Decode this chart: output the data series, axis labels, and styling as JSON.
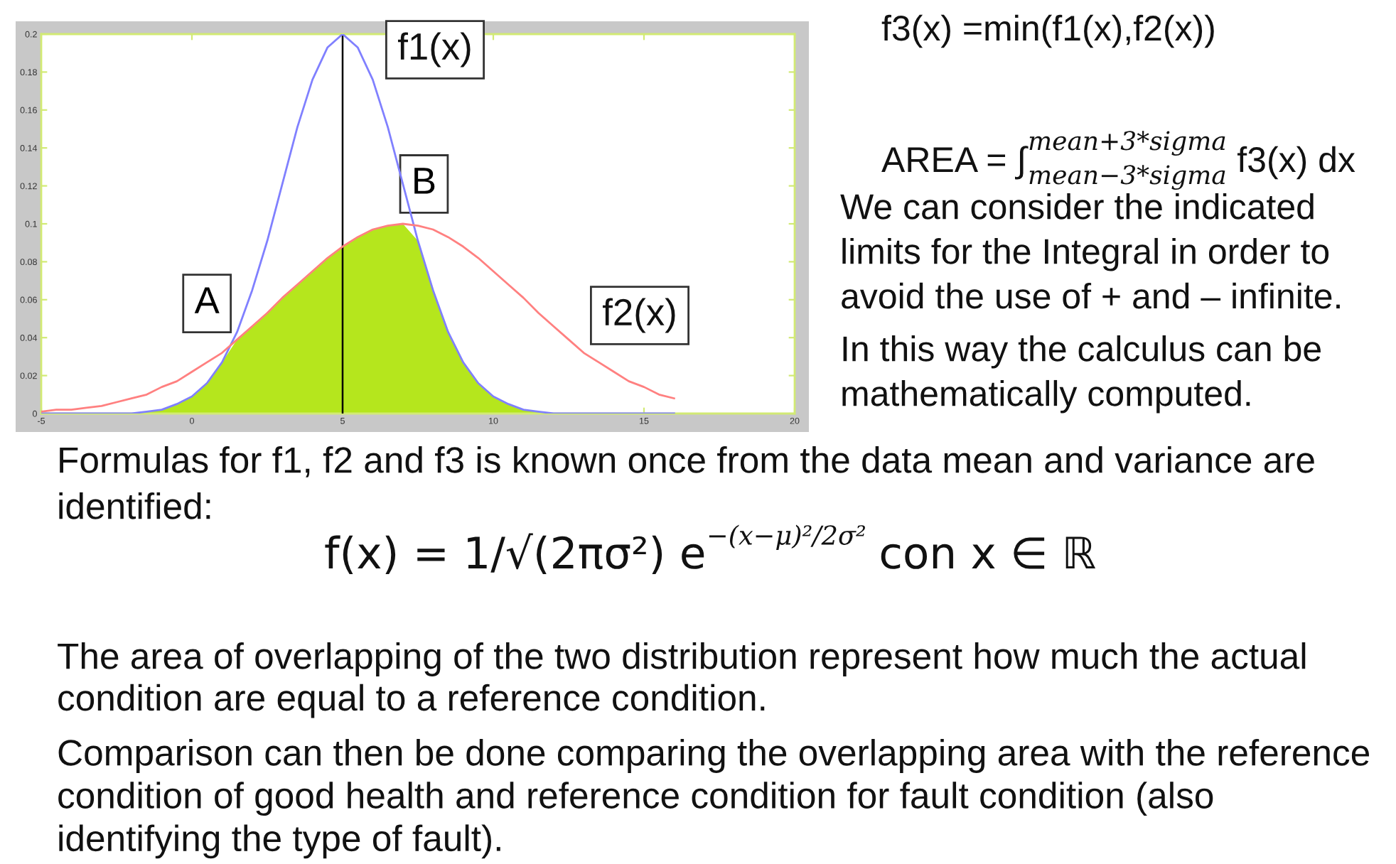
{
  "chart_data": {
    "type": "line",
    "x": [
      -5,
      -4.5,
      -4,
      -3.5,
      -3,
      -2.5,
      -2,
      -1.5,
      -1,
      -0.5,
      0,
      0.5,
      1,
      1.5,
      2,
      2.5,
      3,
      3.5,
      4,
      4.5,
      5,
      5.5,
      6,
      6.5,
      7,
      7.5,
      8,
      8.5,
      9,
      9.5,
      10,
      10.5,
      11,
      11.5,
      12,
      12.5,
      13,
      13.5,
      14,
      14.5,
      15,
      15.5,
      16
    ],
    "series": [
      {
        "type": "area",
        "color": "#b5e61d",
        "values": [
          0,
          0,
          0,
          0,
          0,
          0,
          0,
          0.001,
          0.002,
          0.005,
          0.009,
          0.016,
          0.027,
          0.039,
          0.046,
          0.053,
          0.061,
          0.068,
          0.075,
          0.082,
          0.088,
          0.093,
          0.097,
          0.099,
          0.1,
          0.091,
          0.065,
          0.043,
          0.027,
          0.016,
          0.009,
          0.005,
          0.002,
          0.001,
          0,
          0,
          0,
          0,
          0,
          0,
          0,
          0,
          0
        ]
      },
      {
        "color": "#8080ff",
        "values": [
          0,
          0,
          0,
          0,
          0,
          0,
          0,
          0.001,
          0.002,
          0.005,
          0.009,
          0.016,
          0.027,
          0.043,
          0.065,
          0.091,
          0.121,
          0.151,
          0.176,
          0.193,
          0.2,
          0.193,
          0.176,
          0.151,
          0.121,
          0.091,
          0.065,
          0.043,
          0.027,
          0.016,
          0.009,
          0.005,
          0.002,
          0.001,
          0,
          0,
          0,
          0,
          0,
          0,
          0,
          0,
          0
        ]
      },
      {
        "color": "#ff8080",
        "values": [
          0.001,
          0.002,
          0.002,
          0.003,
          0.004,
          0.006,
          0.008,
          0.01,
          0.014,
          0.017,
          0.022,
          0.027,
          0.032,
          0.039,
          0.046,
          0.053,
          0.061,
          0.068,
          0.075,
          0.082,
          0.088,
          0.093,
          0.097,
          0.099,
          0.1,
          0.099,
          0.097,
          0.093,
          0.088,
          0.082,
          0.075,
          0.068,
          0.061,
          0.053,
          0.046,
          0.039,
          0.032,
          0.027,
          0.022,
          0.017,
          0.014,
          0.01,
          0.008
        ]
      }
    ],
    "xlim": [
      -5,
      20
    ],
    "xticks": [
      -5,
      0,
      5,
      10,
      15,
      20
    ],
    "ylim": [
      0,
      0.2
    ],
    "yticks": [
      0,
      0.02,
      0.04,
      0.06,
      0.08,
      0.1,
      0.12,
      0.14,
      0.16,
      0.18,
      0.2
    ],
    "ref_lines": [
      {
        "axis": "x",
        "value": 5,
        "color": "#000000"
      }
    ],
    "annotations": [
      "f1(x)",
      {
        "text": "A",
        "x": 0.5,
        "y": 0.058
      },
      {
        "text": "B",
        "x": 7.7,
        "y": 0.121
      },
      "f2(x)",
      "f3(x) =min(f1(x),f2(x))",
      "AREA = ∫$^{mean+3*sigma}$$_{mean−3*sigma}$ f3(x) dx",
      "We can consider the indicated\nlimits for the Integral in order to\navoid the use of + and – infinite.",
      "In this way the calculus can be\nmathematically computed.",
      "Formulas for f1, f2 and f3 is known once from the data mean and variance are\nidentified:",
      "f(x) = 1/√(2πσ²) e$^{−(x−μ)²/2σ²}$ con x ∈ ℝ",
      "The area of overlapping of the two distribution represent how much the actual\ncondition are equal to a reference condition.",
      "Comparison can then be done comparing the overlapping area with the reference\ncondition of good health and reference condition for fault condition (also\nidentifying the type of fault)."
    ]
  }
}
